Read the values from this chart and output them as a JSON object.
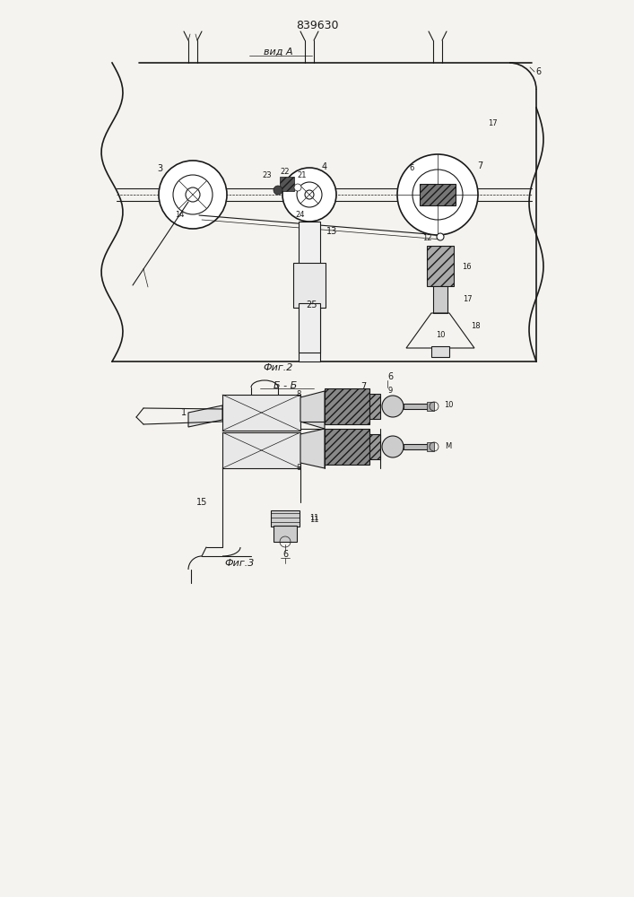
{
  "patent_number": "839630",
  "bg_color": "#f5f3ef",
  "line_color": "#1a1a1a",
  "fig2_label": "Фиг.2",
  "fig3_label": "Фиг.3",
  "vida_label": "вид А",
  "bb_label": "Б - Б"
}
